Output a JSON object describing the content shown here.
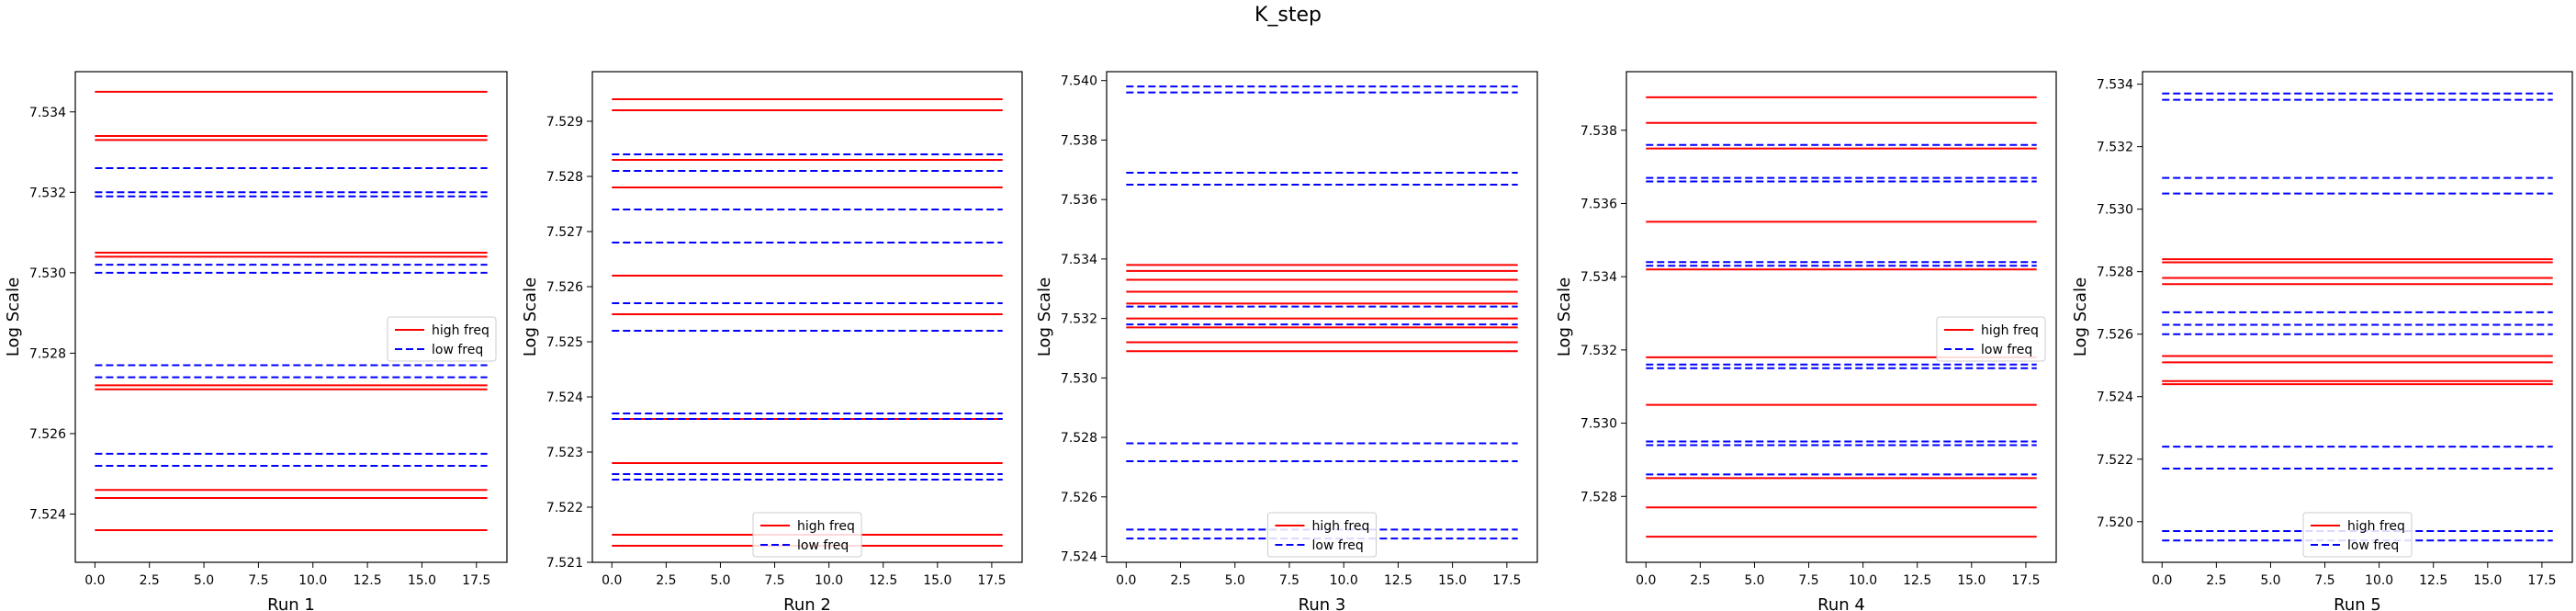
{
  "figure": {
    "title": "K_step"
  },
  "colors": {
    "high": "#ff0000",
    "low": "#0000ff"
  },
  "chart_data": [
    {
      "type": "line",
      "xlabel": "Run 1",
      "ylabel": "Log Scale",
      "xlim": [
        -0.9,
        18.9
      ],
      "ylim": [
        7.5228,
        7.535
      ],
      "xticks": [
        0.0,
        2.5,
        5.0,
        7.5,
        10.0,
        12.5,
        15.0,
        17.5
      ],
      "yticks": [
        7.524,
        7.526,
        7.528,
        7.53,
        7.532,
        7.534
      ],
      "x": [
        0,
        18
      ],
      "legend": {
        "position": "center-right"
      },
      "series": [
        {
          "name": "high freq",
          "style": "solid",
          "color": "red",
          "levels": [
            7.5345,
            7.5334,
            7.5333,
            7.5305,
            7.5304,
            7.5272,
            7.5271,
            7.5246,
            7.5244,
            7.5236
          ]
        },
        {
          "name": "low freq",
          "style": "dashed",
          "color": "blue",
          "levels": [
            7.5326,
            7.532,
            7.5319,
            7.5302,
            7.53,
            7.5277,
            7.5274,
            7.5255,
            7.5252
          ]
        }
      ]
    },
    {
      "type": "line",
      "xlabel": "Run 2",
      "ylabel": "Log Scale",
      "xlim": [
        -0.9,
        18.9
      ],
      "ylim": [
        7.521,
        7.5299
      ],
      "xticks": [
        0.0,
        2.5,
        5.0,
        7.5,
        10.0,
        12.5,
        15.0,
        17.5
      ],
      "yticks": [
        7.521,
        7.522,
        7.523,
        7.524,
        7.525,
        7.526,
        7.527,
        7.528,
        7.529
      ],
      "x": [
        0,
        18
      ],
      "legend": {
        "position": "bottom-center"
      },
      "series": [
        {
          "name": "high freq",
          "style": "solid",
          "color": "red",
          "levels": [
            7.5294,
            7.5292,
            7.5283,
            7.5278,
            7.5262,
            7.5255,
            7.5236,
            7.5228,
            7.5215,
            7.5213
          ]
        },
        {
          "name": "low freq",
          "style": "dashed",
          "color": "blue",
          "levels": [
            7.5284,
            7.5281,
            7.5274,
            7.5268,
            7.5257,
            7.5252,
            7.5237,
            7.5236,
            7.5226,
            7.5225
          ]
        }
      ]
    },
    {
      "type": "line",
      "xlabel": "Run 3",
      "ylabel": "Log Scale",
      "xlim": [
        -0.9,
        18.9
      ],
      "ylim": [
        7.5238,
        7.5403
      ],
      "xticks": [
        0.0,
        2.5,
        5.0,
        7.5,
        10.0,
        12.5,
        15.0,
        17.5
      ],
      "yticks": [
        7.524,
        7.526,
        7.528,
        7.53,
        7.532,
        7.534,
        7.536,
        7.538,
        7.54
      ],
      "x": [
        0,
        18
      ],
      "legend": {
        "position": "bottom-center"
      },
      "series": [
        {
          "name": "high freq",
          "style": "solid",
          "color": "red",
          "levels": [
            7.5338,
            7.5336,
            7.5333,
            7.5329,
            7.5325,
            7.532,
            7.5317,
            7.5312,
            7.5309
          ]
        },
        {
          "name": "low freq",
          "style": "dashed",
          "color": "blue",
          "levels": [
            7.5398,
            7.5396,
            7.5369,
            7.5365,
            7.5324,
            7.5318,
            7.5278,
            7.5272,
            7.5249,
            7.5246
          ]
        }
      ]
    },
    {
      "type": "line",
      "xlabel": "Run 4",
      "ylabel": "Log Scale",
      "xlim": [
        -0.9,
        18.9
      ],
      "ylim": [
        7.5262,
        7.5396
      ],
      "xticks": [
        0.0,
        2.5,
        5.0,
        7.5,
        10.0,
        12.5,
        15.0,
        17.5
      ],
      "yticks": [
        7.528,
        7.53,
        7.532,
        7.534,
        7.536,
        7.538
      ],
      "x": [
        0,
        18
      ],
      "legend": {
        "position": "center-right"
      },
      "series": [
        {
          "name": "high freq",
          "style": "solid",
          "color": "red",
          "levels": [
            7.5389,
            7.5382,
            7.5375,
            7.5355,
            7.5342,
            7.5318,
            7.5305,
            7.5285,
            7.5277,
            7.5269
          ]
        },
        {
          "name": "low freq",
          "style": "dashed",
          "color": "blue",
          "levels": [
            7.5376,
            7.5367,
            7.5366,
            7.5344,
            7.5343,
            7.5316,
            7.5315,
            7.5295,
            7.5294,
            7.5286
          ]
        }
      ]
    },
    {
      "type": "line",
      "xlabel": "Run 5",
      "ylabel": "Log Scale",
      "xlim": [
        -0.9,
        18.9
      ],
      "ylim": [
        7.5187,
        7.5344
      ],
      "xticks": [
        0.0,
        2.5,
        5.0,
        7.5,
        10.0,
        12.5,
        15.0,
        17.5
      ],
      "yticks": [
        7.52,
        7.522,
        7.524,
        7.526,
        7.528,
        7.53,
        7.532,
        7.534
      ],
      "x": [
        0,
        18
      ],
      "legend": {
        "position": "bottom-center"
      },
      "series": [
        {
          "name": "high freq",
          "style": "solid",
          "color": "red",
          "levels": [
            7.5284,
            7.5283,
            7.5278,
            7.5276,
            7.5253,
            7.5251,
            7.5245,
            7.5244
          ]
        },
        {
          "name": "low freq",
          "style": "dashed",
          "color": "blue",
          "levels": [
            7.5337,
            7.5335,
            7.531,
            7.5305,
            7.5267,
            7.5263,
            7.526,
            7.5224,
            7.5217,
            7.5197,
            7.5194
          ]
        }
      ]
    }
  ]
}
